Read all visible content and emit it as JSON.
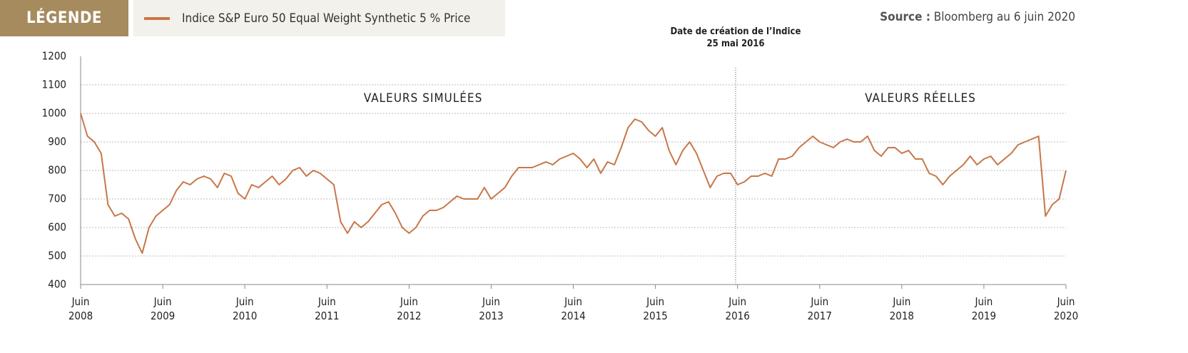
{
  "chart_data": {
    "type": "line",
    "legend_title": "LÉGENDE",
    "source_label": "Source :",
    "source_text": "Bloomberg au 6 juin 2020",
    "annotation_title": "Date de création de l’Indice",
    "annotation_date": "25 mai 2016",
    "region_left": "VALEURS SIMULÉES",
    "region_right": "VALEURS RÉELLES",
    "x": [
      "2008-06",
      "2008-07",
      "2008-08",
      "2008-09",
      "2008-10",
      "2008-11",
      "2008-12",
      "2009-01",
      "2009-02",
      "2009-03",
      "2009-04",
      "2009-05",
      "2009-06",
      "2009-07",
      "2009-08",
      "2009-09",
      "2009-10",
      "2009-11",
      "2009-12",
      "2010-01",
      "2010-02",
      "2010-03",
      "2010-04",
      "2010-05",
      "2010-06",
      "2010-07",
      "2010-08",
      "2010-09",
      "2010-10",
      "2010-11",
      "2010-12",
      "2011-01",
      "2011-02",
      "2011-03",
      "2011-04",
      "2011-05",
      "2011-06",
      "2011-07",
      "2011-08",
      "2011-09",
      "2011-10",
      "2011-11",
      "2011-12",
      "2012-01",
      "2012-02",
      "2012-03",
      "2012-04",
      "2012-05",
      "2012-06",
      "2012-07",
      "2012-08",
      "2012-09",
      "2012-10",
      "2012-11",
      "2012-12",
      "2013-01",
      "2013-02",
      "2013-03",
      "2013-04",
      "2013-05",
      "2013-06",
      "2013-07",
      "2013-08",
      "2013-09",
      "2013-10",
      "2013-11",
      "2013-12",
      "2014-01",
      "2014-02",
      "2014-03",
      "2014-04",
      "2014-05",
      "2014-06",
      "2014-07",
      "2014-08",
      "2014-09",
      "2014-10",
      "2014-11",
      "2014-12",
      "2015-01",
      "2015-02",
      "2015-03",
      "2015-04",
      "2015-05",
      "2015-06",
      "2015-07",
      "2015-08",
      "2015-09",
      "2015-10",
      "2015-11",
      "2015-12",
      "2016-01",
      "2016-02",
      "2016-03",
      "2016-04",
      "2016-05",
      "2016-06",
      "2016-07",
      "2016-08",
      "2016-09",
      "2016-10",
      "2016-11",
      "2016-12",
      "2017-01",
      "2017-02",
      "2017-03",
      "2017-04",
      "2017-05",
      "2017-06",
      "2017-07",
      "2017-08",
      "2017-09",
      "2017-10",
      "2017-11",
      "2017-12",
      "2018-01",
      "2018-02",
      "2018-03",
      "2018-04",
      "2018-05",
      "2018-06",
      "2018-07",
      "2018-08",
      "2018-09",
      "2018-10",
      "2018-11",
      "2018-12",
      "2019-01",
      "2019-02",
      "2019-03",
      "2019-04",
      "2019-05",
      "2019-06",
      "2019-07",
      "2019-08",
      "2019-09",
      "2019-10",
      "2019-11",
      "2019-12",
      "2020-01",
      "2020-02",
      "2020-03",
      "2020-04",
      "2020-05",
      "2020-06"
    ],
    "series": [
      {
        "name": "Indice S&P Euro 50 Equal Weight Synthetic 5 % Price",
        "color": "#c87648",
        "values": [
          1000,
          920,
          900,
          860,
          680,
          640,
          650,
          630,
          560,
          510,
          600,
          640,
          660,
          680,
          730,
          760,
          750,
          770,
          780,
          770,
          740,
          790,
          780,
          720,
          700,
          750,
          740,
          760,
          780,
          750,
          770,
          800,
          810,
          780,
          800,
          790,
          770,
          750,
          620,
          580,
          620,
          600,
          620,
          650,
          680,
          690,
          650,
          600,
          580,
          600,
          640,
          660,
          660,
          670,
          690,
          710,
          700,
          700,
          700,
          740,
          700,
          720,
          740,
          780,
          810,
          810,
          810,
          820,
          830,
          820,
          840,
          850,
          860,
          840,
          810,
          840,
          790,
          830,
          820,
          880,
          950,
          980,
          970,
          940,
          920,
          950,
          870,
          820,
          870,
          900,
          860,
          800,
          740,
          780,
          790,
          790,
          750,
          760,
          780,
          780,
          790,
          780,
          840,
          840,
          850,
          880,
          900,
          920,
          900,
          890,
          880,
          900,
          910,
          900,
          900,
          920,
          870,
          850,
          880,
          880,
          860,
          870,
          840,
          840,
          790,
          780,
          750,
          780,
          800,
          820,
          850,
          820,
          840,
          850,
          820,
          840,
          860,
          890,
          900,
          910,
          920,
          640,
          680,
          700,
          800
        ]
      }
    ],
    "ylim": [
      400,
      1200
    ],
    "yticks": [
      400,
      500,
      600,
      700,
      800,
      900,
      1000,
      1100,
      1200
    ],
    "xlim": [
      "2008-06",
      "2020-06"
    ],
    "xticks": [
      {
        "value": "2008-06",
        "label": "Juin 2008"
      },
      {
        "value": "2009-06",
        "label": "Juin 2009"
      },
      {
        "value": "2010-06",
        "label": "Juin 2010"
      },
      {
        "value": "2011-06",
        "label": "Juin 2011"
      },
      {
        "value": "2012-06",
        "label": "Juin 2012"
      },
      {
        "value": "2013-06",
        "label": "Juin 2013"
      },
      {
        "value": "2014-06",
        "label": "Juin 2014"
      },
      {
        "value": "2015-06",
        "label": "Juin 2015"
      },
      {
        "value": "2016-06",
        "label": "Juin 2016"
      },
      {
        "value": "2017-06",
        "label": "Juin 2017"
      },
      {
        "value": "2018-06",
        "label": "Juin 2018"
      },
      {
        "value": "2019-06",
        "label": "Juin 2019"
      },
      {
        "value": "2020-06",
        "label": "Juin 2020"
      }
    ],
    "grid": true
  }
}
